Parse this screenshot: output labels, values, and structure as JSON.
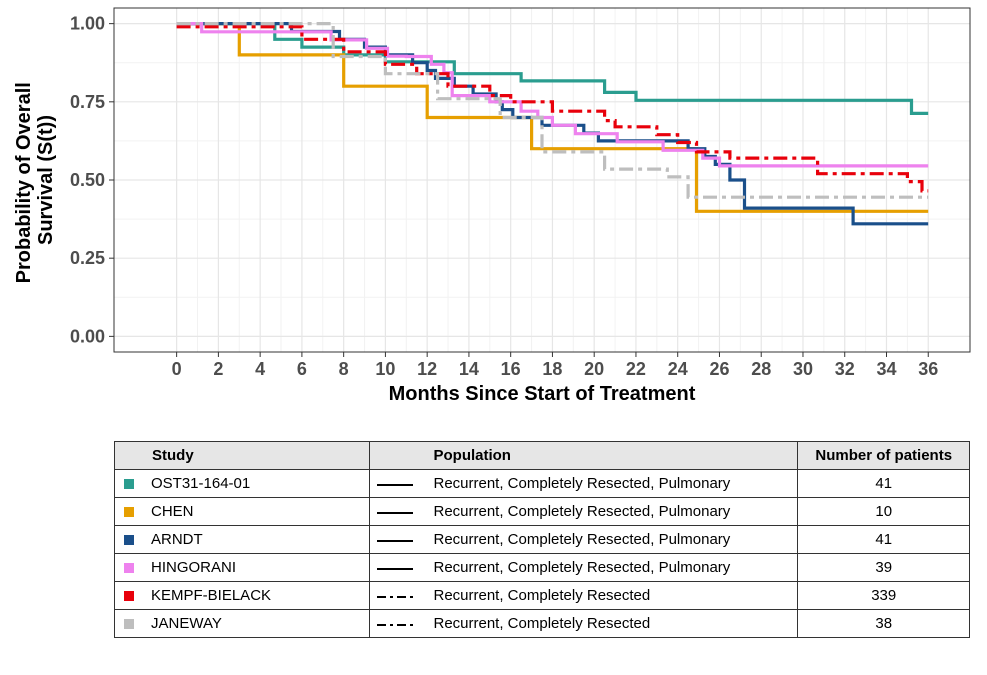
{
  "chart_data": {
    "type": "line",
    "step": true,
    "xlabel": "Months Since Start of Treatment",
    "ylabel_lines": [
      "Probability of Overall",
      "Survival (S(t))"
    ],
    "xlim": [
      -3,
      38
    ],
    "ylim": [
      -0.05,
      1.05
    ],
    "xticks": [
      0,
      2,
      4,
      6,
      8,
      10,
      12,
      14,
      16,
      18,
      20,
      22,
      24,
      26,
      28,
      30,
      32,
      34,
      36
    ],
    "xtick_labels": [
      "0",
      "2",
      "4",
      "6",
      "8",
      "10",
      "12",
      "14",
      "16",
      "18",
      "20",
      "22",
      "24",
      "26",
      "28",
      "30",
      "32",
      "34",
      "36"
    ],
    "yticks": [
      0,
      0.25,
      0.5,
      0.75,
      1
    ],
    "ytick_labels": [
      "0.00",
      "0.25",
      "0.50",
      "0.75",
      "1.00"
    ],
    "grid": true,
    "series": [
      {
        "name": "OST31-164-01",
        "color": "#2a9d8f",
        "dash": "solid",
        "x": [
          0,
          4.7,
          6,
          8,
          10,
          13.3,
          16.5,
          20.5,
          22,
          35.2,
          36
        ],
        "y": [
          1.0,
          0.95,
          0.925,
          0.9,
          0.878,
          0.84,
          0.817,
          0.78,
          0.755,
          0.713,
          0.713
        ]
      },
      {
        "name": "CHEN",
        "color": "#e69f00",
        "dash": "solid",
        "x": [
          0,
          3,
          8,
          12,
          17,
          24.9,
          36
        ],
        "y": [
          1.0,
          0.9,
          0.8,
          0.7,
          0.6,
          0.4,
          0.4
        ]
      },
      {
        "name": "ARNDT",
        "color": "#1a4f8a",
        "dash": "solid",
        "x": [
          0,
          5.5,
          7.8,
          9,
          10,
          11.3,
          12,
          12.4,
          13.3,
          14.2,
          15.3,
          15.6,
          16.1,
          17.5,
          19.5,
          20.2,
          24.5,
          25.3,
          25.8,
          26.5,
          27.2,
          32.4,
          36
        ],
        "y": [
          1.0,
          0.975,
          0.95,
          0.925,
          0.9,
          0.875,
          0.85,
          0.825,
          0.8,
          0.775,
          0.75,
          0.725,
          0.7,
          0.675,
          0.65,
          0.625,
          0.6,
          0.575,
          0.55,
          0.5,
          0.41,
          0.36,
          0.36
        ]
      },
      {
        "name": "HINGORANI",
        "color": "#ee82ee",
        "dash": "solid",
        "x": [
          0,
          1.2,
          2.8,
          7.4,
          9.1,
          10.1,
          11,
          12.2,
          12.8,
          13.2,
          15,
          16.5,
          17.3,
          18,
          19.1,
          21.1,
          23.3,
          25.2,
          26,
          36
        ],
        "y": [
          1.0,
          0.974,
          0.974,
          0.948,
          0.921,
          0.896,
          0.895,
          0.87,
          0.843,
          0.77,
          0.75,
          0.72,
          0.7,
          0.675,
          0.648,
          0.622,
          0.595,
          0.57,
          0.545,
          0.545
        ]
      },
      {
        "name": "KEMPF-BIELACK",
        "color": "#e8000b",
        "dash": "dashdot",
        "x": [
          0,
          6,
          8,
          10,
          11.5,
          13,
          15,
          16,
          18,
          20.5,
          21,
          23,
          24,
          24.9,
          26.5,
          30.7,
          35,
          35.7,
          36
        ],
        "y": [
          0.99,
          0.95,
          0.91,
          0.87,
          0.84,
          0.8,
          0.77,
          0.75,
          0.72,
          0.69,
          0.67,
          0.645,
          0.62,
          0.59,
          0.57,
          0.52,
          0.495,
          0.465,
          0.465
        ]
      },
      {
        "name": "JANEWAY",
        "color": "#bebebe",
        "dash": "dashdot",
        "x": [
          0,
          7.5,
          10,
          12.5,
          15.5,
          17.5,
          20.5,
          23.5,
          24.5,
          36
        ],
        "y": [
          1.0,
          0.895,
          0.84,
          0.76,
          0.7,
          0.59,
          0.535,
          0.51,
          0.445,
          0.445
        ]
      }
    ]
  },
  "table": {
    "headers": {
      "study": "Study",
      "population": "Population",
      "number": "Number of patients"
    },
    "rows": [
      {
        "study": "OST31-164-01",
        "color": "#2a9d8f",
        "line": "solid",
        "population": "Recurrent, Completely Resected, Pulmonary",
        "n": "41"
      },
      {
        "study": "CHEN",
        "color": "#e69f00",
        "line": "solid",
        "population": "Recurrent, Completely Resected, Pulmonary",
        "n": "10"
      },
      {
        "study": "ARNDT",
        "color": "#1a4f8a",
        "line": "solid",
        "population": "Recurrent, Completely Resected, Pulmonary",
        "n": "41"
      },
      {
        "study": "HINGORANI",
        "color": "#ee82ee",
        "line": "solid",
        "population": "Recurrent, Completely Resected, Pulmonary",
        "n": "39"
      },
      {
        "study": "KEMPF-BIELACK",
        "color": "#e8000b",
        "line": "dashdot",
        "population": "Recurrent, Completely Resected",
        "n": "339"
      },
      {
        "study": "JANEWAY",
        "color": "#bebebe",
        "line": "dashdot",
        "population": "Recurrent, Completely Resected",
        "n": "38"
      }
    ]
  }
}
